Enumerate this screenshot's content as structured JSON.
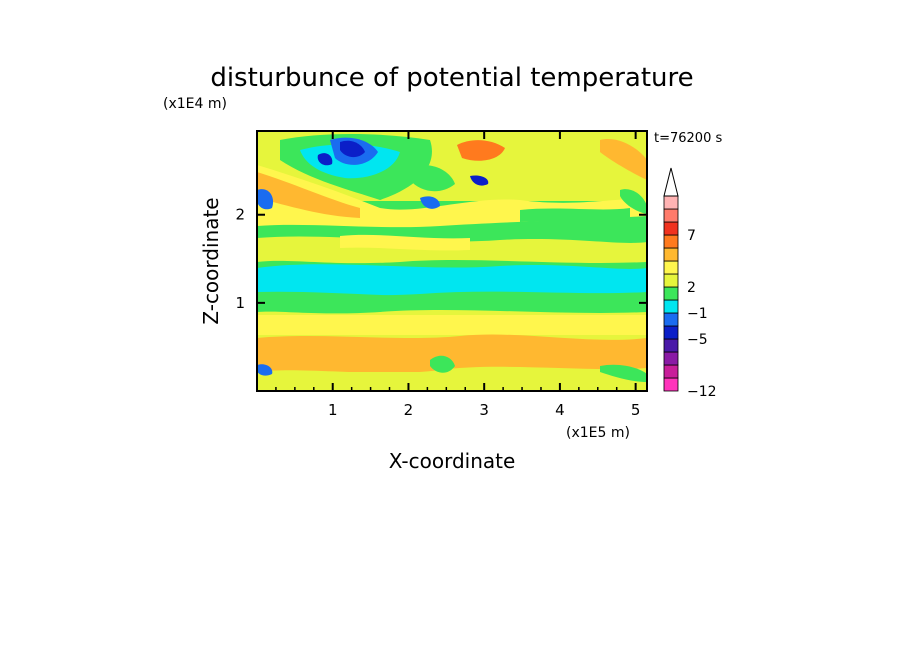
{
  "chart_data": {
    "type": "heatmap",
    "title": "disturbunce of potential temperature",
    "xlabel": "X-coordinate",
    "ylabel": "Z-coordinate",
    "x_scale_label": "(x1E5 m)",
    "y_scale_label": "(x1E4 m)",
    "time_label": "t=76200 s",
    "xlim": [
      0,
      5.15
    ],
    "ylim": [
      0,
      2.95
    ],
    "x_ticks": [
      "1",
      "2",
      "3",
      "4",
      "5"
    ],
    "y_ticks": [
      "1",
      "2"
    ],
    "colorbar": {
      "labels": [
        "7",
        "2",
        "−1",
        "−5",
        "−12"
      ],
      "colors": [
        "#ff33bb",
        "#c81e9a",
        "#8a1aa5",
        "#4a19a8",
        "#0b1fc8",
        "#1a6cf0",
        "#00e6f0",
        "#3ce65a",
        "#e6f53c",
        "#fff64d",
        "#ffb830",
        "#ff7a1e",
        "#f0321e",
        "#ff7b6b",
        "#ffb3b3"
      ]
    },
    "legend_placement": "right",
    "grid": false
  }
}
